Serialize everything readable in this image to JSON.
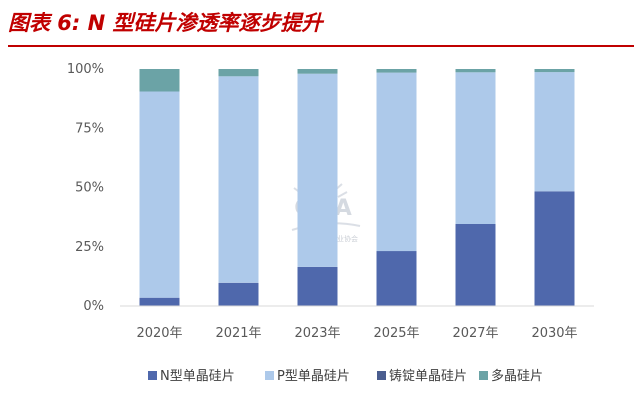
{
  "header": {
    "title": "图表 6:  N 型硅片渗透率逐步提升"
  },
  "watermark": {
    "logo": "CPIA",
    "name": "中国光伏行业协会"
  },
  "chart_data": {
    "type": "bar",
    "stacked": true,
    "categories": [
      "2020年",
      "2021年",
      "2023年",
      "2025年",
      "2027年",
      "2030年"
    ],
    "yticks": [
      "0%",
      "25%",
      "50%",
      "75%",
      "100%"
    ],
    "ylim": [
      0,
      100
    ],
    "grid": false,
    "legend_position": "bottom",
    "series": [
      {
        "name": "N型单晶硅片",
        "color": "#4f68ac",
        "values": [
          3.5,
          9.8,
          16.5,
          23.2,
          34.6,
          48.4
        ]
      },
      {
        "name": "P型单晶硅片",
        "color": "#adc9ea",
        "values": [
          87.0,
          87.1,
          81.5,
          75.3,
          64.0,
          50.3
        ]
      },
      {
        "name": "铸锭单晶硅片",
        "color": "#4a5d8f",
        "values": [
          0.0,
          0.0,
          0.0,
          0.0,
          0.0,
          0.0
        ]
      },
      {
        "name": "多晶硅片",
        "color": "#6ba3a6",
        "values": [
          9.5,
          3.1,
          2.0,
          1.5,
          1.4,
          1.3
        ]
      }
    ]
  }
}
